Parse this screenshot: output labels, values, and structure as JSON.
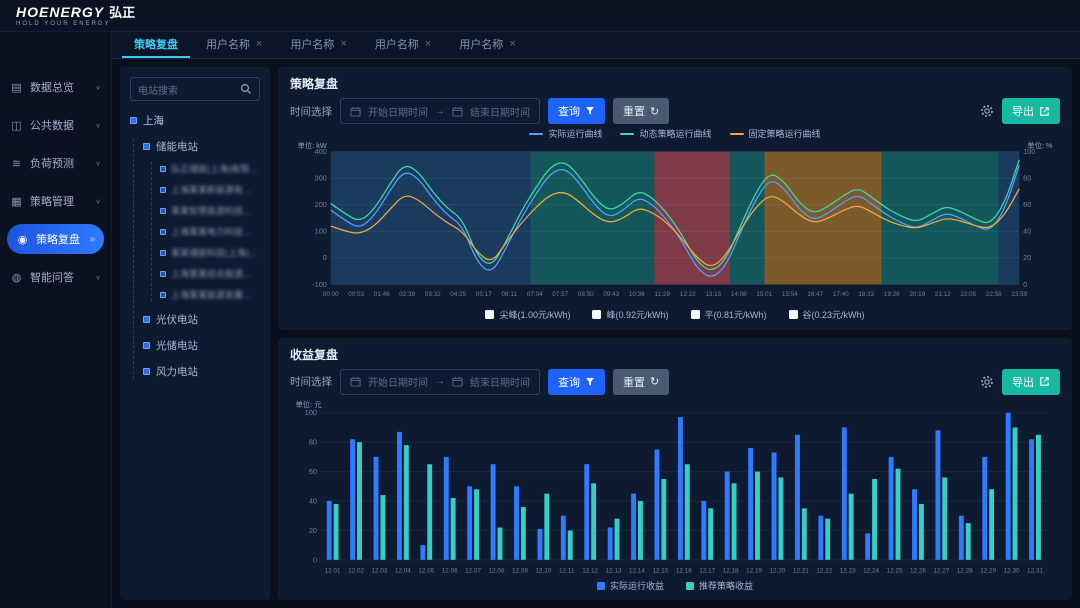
{
  "header": {
    "logo": "HOENERGY",
    "logo_suffix": "弘正",
    "tagline": "HOLD YOUR ENERGY"
  },
  "tabs": [
    {
      "label": "策略复盘",
      "active": true,
      "closable": false
    },
    {
      "label": "用户名称",
      "active": false,
      "closable": true
    },
    {
      "label": "用户名称",
      "active": false,
      "closable": true
    },
    {
      "label": "用户名称",
      "active": false,
      "closable": true
    },
    {
      "label": "用户名称",
      "active": false,
      "closable": true
    }
  ],
  "sidebar": {
    "items": [
      {
        "label": "数据总览",
        "icon": "data-overview",
        "chevron": true,
        "active": false
      },
      {
        "label": "公共数据",
        "icon": "public-data",
        "chevron": true,
        "active": false
      },
      {
        "label": "负荷预测",
        "icon": "load-forecast",
        "chevron": true,
        "active": false
      },
      {
        "label": "策略管理",
        "icon": "strategy-manage",
        "chevron": true,
        "active": false
      },
      {
        "label": "策略复盘",
        "icon": "strategy-review",
        "chevron": false,
        "active": true
      },
      {
        "label": "智能问答",
        "icon": "smart-qa",
        "chevron": true,
        "active": false
      }
    ]
  },
  "tree": {
    "search_placeholder": "电站搜索",
    "root": "上海",
    "groups": [
      {
        "label": "储能电站",
        "children": [
          "弘正储能(上海)有限公司",
          "上海某某新能源有限公司",
          "某某智慧能源科技有限公司",
          "上海某某电力科技有限公司",
          "某某储能科技(上海)有限公司",
          "上海某某综合能源有限公司",
          "上海某某能源发展有限公司"
        ]
      },
      {
        "label": "光伏电站",
        "children": []
      },
      {
        "label": "光储电站",
        "children": []
      },
      {
        "label": "风力电站",
        "children": []
      }
    ]
  },
  "controls": {
    "time_label": "时间选择",
    "start_placeholder": "开始日期时间",
    "arrow": "→",
    "end_placeholder": "结束日期时间",
    "query_label": "查询",
    "reset_label": "重置",
    "export_label": "导出"
  },
  "panels": {
    "strategy_title": "策略复盘",
    "revenue_title": "收益复盘"
  },
  "chart_data": [
    {
      "type": "line",
      "title": "策略复盘",
      "unit_left": "单位: kW",
      "unit_right": "单位: %",
      "ylim": [
        -100,
        400
      ],
      "yticks": [
        -100,
        0,
        100,
        200,
        300,
        400
      ],
      "yticks_right": [
        0,
        20,
        40,
        60,
        80,
        100
      ],
      "x_labels": [
        "00:00",
        "00:53",
        "01:46",
        "02:39",
        "03:32",
        "04:25",
        "05:17",
        "06:11",
        "07:04",
        "07:57",
        "08:50",
        "09:43",
        "10:36",
        "11:29",
        "12:22",
        "13:15",
        "14:08",
        "15:01",
        "15:54",
        "16:47",
        "17:40",
        "18:33",
        "19:26",
        "20:19",
        "21:12",
        "22:05",
        "22:58",
        "23:59"
      ],
      "series": [
        {
          "name": "实际运行曲线",
          "color": "#4ea1ff",
          "values": [
            180,
            140,
            110,
            160,
            250,
            330,
            300,
            220,
            160,
            120,
            -20,
            -60,
            40,
            150,
            240,
            320,
            340,
            280,
            200,
            150,
            180,
            230,
            200,
            140,
            60,
            -40,
            -80,
            -30,
            100,
            220,
            300,
            260,
            180,
            140,
            170,
            210,
            240,
            200,
            160,
            130,
            110,
            140,
            170,
            150,
            120,
            100,
            180,
            350
          ]
        },
        {
          "name": "动态策略运行曲线",
          "color": "#3fd9a4",
          "values": [
            205,
            165,
            135,
            185,
            275,
            355,
            325,
            245,
            185,
            145,
            5,
            -35,
            65,
            175,
            265,
            345,
            365,
            305,
            225,
            175,
            205,
            255,
            225,
            165,
            85,
            -15,
            -55,
            -5,
            125,
            245,
            325,
            285,
            205,
            165,
            195,
            235,
            265,
            225,
            185,
            155,
            135,
            165,
            195,
            175,
            145,
            125,
            205,
            370
          ]
        },
        {
          "name": "固定策略运行曲线",
          "color": "#f0a93c",
          "values": [
            120,
            100,
            90,
            120,
            180,
            240,
            220,
            170,
            130,
            100,
            20,
            -20,
            60,
            130,
            190,
            240,
            250,
            210,
            160,
            130,
            150,
            190,
            170,
            130,
            70,
            0,
            -40,
            10,
            110,
            190,
            240,
            210,
            160,
            130,
            150,
            180,
            200,
            170,
            140,
            120,
            110,
            130,
            150,
            140,
            120,
            110,
            160,
            260
          ]
        }
      ],
      "bands": [
        {
          "label": "valley",
          "from": 0.0,
          "to": 0.29,
          "color": "#1a3a5e"
        },
        {
          "label": "flat",
          "from": 0.29,
          "to": 0.47,
          "color": "#14575a"
        },
        {
          "label": "peak-sharp",
          "from": 0.47,
          "to": 0.58,
          "color": "#7e3a46"
        },
        {
          "label": "flat",
          "from": 0.58,
          "to": 0.63,
          "color": "#14575a"
        },
        {
          "label": "peak",
          "from": 0.63,
          "to": 0.8,
          "color": "#7d5a2c"
        },
        {
          "label": "flat",
          "from": 0.8,
          "to": 0.97,
          "color": "#14575a"
        },
        {
          "label": "valley",
          "from": 0.97,
          "to": 1.0,
          "color": "#1a3a5e"
        }
      ],
      "price_legend": [
        {
          "label": "尖峰(1.00元/kWh)"
        },
        {
          "label": "峰(0.92元/kWh)"
        },
        {
          "label": "平(0.81元/kWh)"
        },
        {
          "label": "谷(0.23元/kWh)"
        }
      ]
    },
    {
      "type": "bar",
      "title": "收益复盘",
      "unit": "单位: 元",
      "ylim": [
        0,
        100
      ],
      "yticks": [
        0,
        20,
        40,
        60,
        80,
        100
      ],
      "categories": [
        "12.01",
        "12.02",
        "12.03",
        "12.04",
        "12.05",
        "12.06",
        "12.07",
        "12.08",
        "12.09",
        "12.10",
        "12.11",
        "12.12",
        "12.13",
        "12.14",
        "12.15",
        "12.16",
        "12.17",
        "12.18",
        "12.19",
        "12.20",
        "12.21",
        "12.22",
        "12.23",
        "12.24",
        "12.25",
        "12.26",
        "12.27",
        "12.28",
        "12.29",
        "12.30",
        "12.31"
      ],
      "series": [
        {
          "name": "实际运行收益",
          "color": "#2f7bff",
          "values": [
            40,
            82,
            70,
            87,
            10,
            70,
            50,
            65,
            50,
            21,
            30,
            65,
            22,
            45,
            75,
            97,
            40,
            60,
            76,
            73,
            85,
            30,
            90,
            18,
            70,
            48,
            88,
            30,
            70,
            100,
            82
          ]
        },
        {
          "name": "推荐策略收益",
          "color": "#35cfc3",
          "values": [
            38,
            80,
            44,
            78,
            65,
            42,
            48,
            22,
            36,
            45,
            20,
            52,
            28,
            40,
            55,
            65,
            35,
            52,
            60,
            56,
            35,
            28,
            45,
            55,
            62,
            38,
            56,
            25,
            48,
            90,
            85
          ]
        }
      ]
    }
  ]
}
